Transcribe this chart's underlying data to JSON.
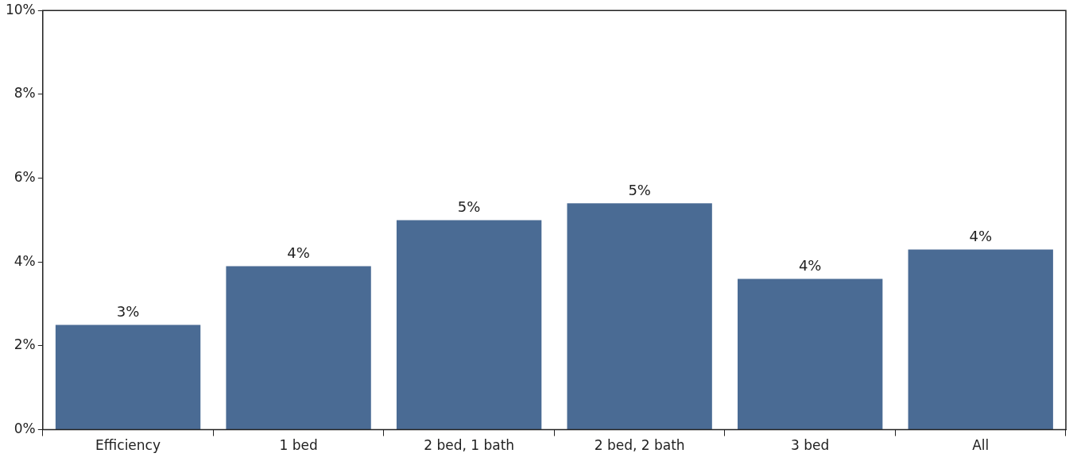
{
  "chart_data": {
    "type": "bar",
    "categories": [
      "Efficiency",
      "1 bed",
      "2 bed, 1 bath",
      "2 bed, 2 bath",
      "3 bed",
      "All"
    ],
    "values": [
      2.5,
      3.9,
      5.0,
      5.4,
      3.6,
      4.3
    ],
    "value_labels": [
      "3%",
      "4%",
      "5%",
      "5%",
      "4%",
      "4%"
    ],
    "color": "#4a6b94",
    "ylim": [
      0,
      10
    ],
    "yticks": [
      {
        "value": 0,
        "label": "0%"
      },
      {
        "value": 2,
        "label": "2%"
      },
      {
        "value": 4,
        "label": "4%"
      },
      {
        "value": 6,
        "label": "6%"
      },
      {
        "value": 8,
        "label": "8%"
      },
      {
        "value": 10,
        "label": "10%"
      }
    ],
    "grid": false,
    "legend": false
  }
}
